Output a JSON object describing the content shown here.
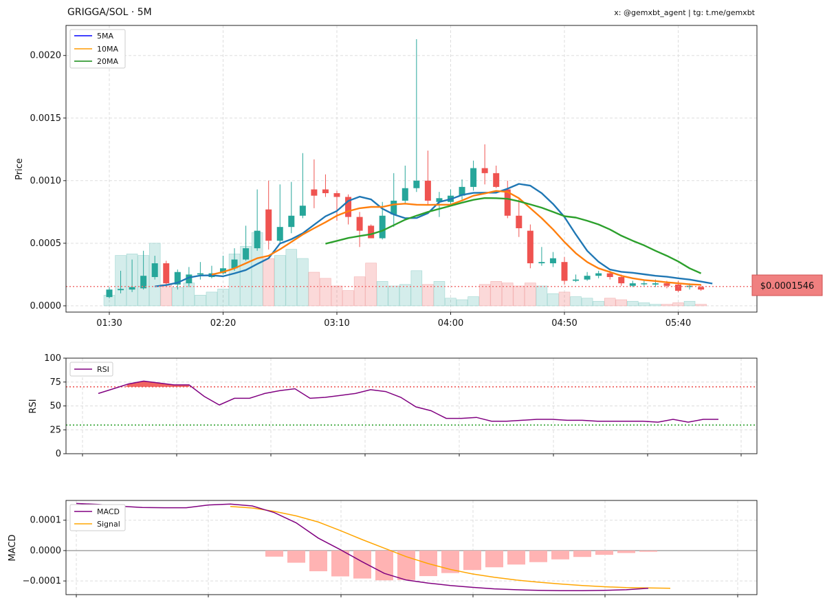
{
  "header": {
    "title": "GRIGGA/SOL · 5M",
    "credit": "x: @gemxbt_agent | tg: t.me/gemxbt"
  },
  "colors": {
    "up": "#26a69a",
    "down": "#ef5350",
    "ma5": "#1f77b4",
    "ma10": "#ff7f0e",
    "ma20": "#2ca02c",
    "rsi": "#800080",
    "macd": "#800080",
    "signal": "#ffa500",
    "hist": "#ffb3b3",
    "last_price_box": "#f08080"
  },
  "chart_data": [
    {
      "type": "candlestick",
      "ylabel": "Price",
      "ylim": [
        -5e-05,
        0.00224
      ],
      "yticks": [
        "0.0000",
        "0.0005",
        "0.0010",
        "0.0015",
        "0.0020"
      ],
      "xticks": [
        "01:30",
        "02:20",
        "03:10",
        "04:00",
        "04:50",
        "05:40"
      ],
      "x": [
        "01:30",
        "01:35",
        "01:40",
        "01:45",
        "01:50",
        "01:55",
        "02:00",
        "02:05",
        "02:10",
        "02:15",
        "02:20",
        "02:25",
        "02:30",
        "02:35",
        "02:40",
        "02:45",
        "02:50",
        "02:55",
        "03:00",
        "03:05",
        "03:10",
        "03:15",
        "03:20",
        "03:25",
        "03:30",
        "03:35",
        "03:40",
        "03:45",
        "03:50",
        "03:55",
        "04:00",
        "04:05",
        "04:10",
        "04:15",
        "04:20",
        "04:25",
        "04:30",
        "04:35",
        "04:40",
        "04:45",
        "04:50",
        "04:55",
        "05:00",
        "05:05",
        "05:10",
        "05:15",
        "05:20",
        "05:25",
        "05:30",
        "05:35",
        "05:40",
        "05:45",
        "05:50"
      ],
      "open": [
        7e-05,
        0.000125,
        0.00013,
        0.00014,
        0.00023,
        0.00034,
        0.00017,
        0.00018,
        0.00025,
        0.00023,
        0.00026,
        0.0003,
        0.00037,
        0.00046,
        0.00077,
        0.00052,
        0.00063,
        0.00072,
        0.00093,
        0.00093,
        0.0009,
        0.00087,
        0.00071,
        0.00064,
        0.00054,
        0.00073,
        0.00084,
        0.00094,
        0.001,
        0.00083,
        0.00083,
        0.00088,
        0.00095,
        0.0011,
        0.00106,
        0.00093,
        0.00072,
        0.0006,
        0.00034,
        0.00034,
        0.00035,
        0.0002,
        0.00021,
        0.00024,
        0.00026,
        0.00023,
        0.00016,
        0.00018,
        0.00017,
        0.00018,
        0.00017,
        0.00015,
        0.00015
      ],
      "close": [
        0.00013,
        0.000135,
        0.00015,
        0.00024,
        0.00034,
        0.00018,
        0.00027,
        0.00025,
        0.00026,
        0.00026,
        0.0003,
        0.00037,
        0.00046,
        0.0006,
        0.00052,
        0.00063,
        0.00072,
        0.0008,
        0.00088,
        0.0009,
        0.00087,
        0.00071,
        0.0006,
        0.00054,
        0.00072,
        0.00084,
        0.00094,
        0.001,
        0.00084,
        0.00086,
        0.00088,
        0.00095,
        0.0011,
        0.00106,
        0.00095,
        0.00072,
        0.00062,
        0.00034,
        0.00035,
        0.00038,
        0.0002,
        0.00021,
        0.00024,
        0.00026,
        0.00023,
        0.00018,
        0.00018,
        0.00018,
        0.00018,
        0.00016,
        0.00012,
        0.00016,
        0.00013
      ],
      "high": [
        0.00015,
        0.00028,
        0.00037,
        0.00044,
        0.0004,
        0.00036,
        0.00029,
        0.00031,
        0.00035,
        0.00032,
        0.0004,
        0.00046,
        0.00064,
        0.00093,
        0.001,
        0.00097,
        0.00099,
        0.00122,
        0.00117,
        0.00105,
        0.00092,
        0.00089,
        0.00075,
        0.00065,
        0.00083,
        0.00106,
        0.00112,
        0.00213,
        0.00124,
        0.00091,
        0.00093,
        0.00101,
        0.00116,
        0.00129,
        0.00112,
        0.001,
        0.00085,
        0.00065,
        0.00047,
        0.00043,
        0.00039,
        0.00025,
        0.00027,
        0.00028,
        0.00028,
        0.00025,
        0.0002,
        0.00021,
        0.00021,
        0.0002,
        0.0002,
        0.00018,
        0.00017
      ],
      "low": [
        6e-05,
        0.0001,
        0.00011,
        0.00013,
        0.00021,
        0.00016,
        0.00013,
        0.00015,
        0.00021,
        0.00022,
        0.00025,
        0.00028,
        0.00036,
        0.00044,
        0.00045,
        0.0005,
        0.00058,
        0.0007,
        0.00078,
        0.00087,
        0.00068,
        0.00065,
        0.00047,
        0.00054,
        0.00053,
        0.00063,
        0.00081,
        0.00091,
        0.00081,
        0.00071,
        0.00081,
        0.00085,
        0.00092,
        0.00097,
        0.00094,
        0.0007,
        0.00055,
        0.0003,
        0.00032,
        0.00031,
        0.00017,
        0.00019,
        0.0002,
        0.00022,
        0.00021,
        0.00016,
        0.00015,
        0.00016,
        0.00015,
        0.00014,
        0.00011,
        0.00013,
        0.00012
      ],
      "volume_norm": [
        0.07,
        0.33,
        0.34,
        0.33,
        0.41,
        0.14,
        0.12,
        0.15,
        0.07,
        0.09,
        0.11,
        0.34,
        0.39,
        0.48,
        0.31,
        0.33,
        0.37,
        0.31,
        0.22,
        0.18,
        0.13,
        0.1,
        0.19,
        0.28,
        0.16,
        0.13,
        0.14,
        0.23,
        0.14,
        0.16,
        0.05,
        0.04,
        0.06,
        0.14,
        0.16,
        0.15,
        0.13,
        0.15,
        0.13,
        0.08,
        0.09,
        0.06,
        0.05,
        0.03,
        0.05,
        0.04,
        0.03,
        0.02,
        0.01,
        0.01,
        0.02,
        0.03,
        0.01
      ],
      "ma_series": [
        {
          "name": "5MA",
          "start": 4,
          "values": [
            0.000155,
            0.000166,
            0.000185,
            0.000226,
            0.000242,
            0.000244,
            0.000236,
            0.00026,
            0.000286,
            0.000334,
            0.00038,
            0.000498,
            0.000532,
            0.00058,
            0.000648,
            0.000715,
            0.000758,
            0.000838,
            0.000872,
            0.00085,
            0.000776,
            0.00073,
            0.0007,
            0.000702,
            0.00074,
            0.00083,
            0.000852,
            0.000886,
            0.000902,
            0.000904,
            0.000904,
            0.000936,
            0.000974,
            0.00096,
            0.0009,
            0.000814,
            0.00071,
            0.00057,
            0.00044,
            0.000352,
            0.00029,
            0.000272,
            0.000264,
            0.000252,
            0.00024,
            0.000232,
            0.00022,
            0.00021,
            0.000194,
            0.000178
          ]
        },
        {
          "name": "10MA",
          "start": 9,
          "values": [
            0.00025,
            0.00027,
            0.0003,
            0.00034,
            0.00038,
            0.0004,
            0.000452,
            0.00051,
            0.00057,
            0.00062,
            0.000668,
            0.00072,
            0.000756,
            0.00078,
            0.00079,
            0.00079,
            0.00081,
            0.000816,
            0.000808,
            0.000806,
            0.000808,
            0.000808,
            0.000842,
            0.00088,
            0.000898,
            0.000918,
            0.00091,
            0.00086,
            0.00078,
            0.0007,
            0.00061,
            0.00051,
            0.00042,
            0.00035,
            0.0003,
            0.00027,
            0.00024,
            0.00022,
            0.000206,
            0.000198,
            0.000188,
            0.00018,
            0.000172,
            0.000168
          ]
        },
        {
          "name": "20MA",
          "start": 19,
          "values": [
            0.000496,
            0.000519,
            0.000542,
            0.000558,
            0.000572,
            0.0006,
            0.000644,
            0.000688,
            0.00072,
            0.00075,
            0.000775,
            0.000799,
            0.000824,
            0.000847,
            0.000861,
            0.00086,
            0.000855,
            0.000835,
            0.00081,
            0.000784,
            0.00075,
            0.000716,
            0.000705,
            0.00068,
            0.00065,
            0.00061,
            0.00056,
            0.00052,
            0.000483,
            0.00044,
            0.0004,
            0.000355,
            0.0003,
            0.00026
          ]
        }
      ],
      "last_price": 0.0001546,
      "last_price_label": "$0.0001546"
    },
    {
      "type": "line",
      "ylabel": "RSI",
      "ylim": [
        0,
        100
      ],
      "yticks": [
        "0",
        "25",
        "50",
        "75",
        "100"
      ],
      "overbought": 70,
      "oversold": 30,
      "series": [
        {
          "name": "RSI",
          "values": [
            63,
            68,
            73,
            76,
            74,
            72,
            72,
            60,
            51,
            58,
            58,
            63,
            66,
            68,
            58,
            59,
            61,
            63,
            67,
            65,
            59,
            49,
            45,
            37,
            37,
            38,
            34,
            34,
            35,
            36,
            36,
            35,
            35,
            34,
            34,
            34,
            34,
            33,
            36,
            33,
            36,
            36
          ]
        }
      ]
    },
    {
      "type": "line",
      "ylabel": "MACD",
      "ylim": [
        -0.000145,
        0.000165
      ],
      "yticks": [
        "0.0001",
        "0.0000",
        "−0.0001"
      ],
      "series": [
        {
          "name": "MACD",
          "values": [
            0.000155,
            0.000152,
            0.000146,
            0.000142,
            0.000141,
            0.000141,
            0.00015,
            0.000153,
            0.000147,
            0.000125,
            9.1e-05,
            4.1e-05,
            3e-06,
            -3.7e-05,
            -7.5e-05,
            -9.7e-05,
            -0.000107,
            -0.000115,
            -0.000121,
            -0.000126,
            -0.000129,
            -0.000131,
            -0.000132,
            -0.000132,
            -0.000131,
            -0.000129,
            -0.000124
          ]
        },
        {
          "name": "Signal",
          "start": 7,
          "values": [
            0.000145,
            0.00014,
            0.000129,
            0.000114,
            9.4e-05,
            6.6e-05,
            3.6e-05,
            8e-06,
            -2e-05,
            -4.3e-05,
            -6.2e-05,
            -7.7e-05,
            -8.8e-05,
            -9.7e-05,
            -0.000104,
            -0.00011,
            -0.000115,
            -0.000119,
            -0.000122,
            -0.000123,
            -0.000124
          ]
        }
      ],
      "histogram": [
        -2e-05,
        -4e-05,
        -6.8e-05,
        -8.5e-05,
        -9.2e-05,
        -9.8e-05,
        -9.7e-05,
        -8.4e-05,
        -7.4e-05,
        -6.4e-05,
        -5.5e-05,
        -4.6e-05,
        -3.8e-05,
        -2.9e-05,
        -2.1e-05,
        -1.4e-05,
        -8e-06,
        -4e-06
      ]
    }
  ]
}
